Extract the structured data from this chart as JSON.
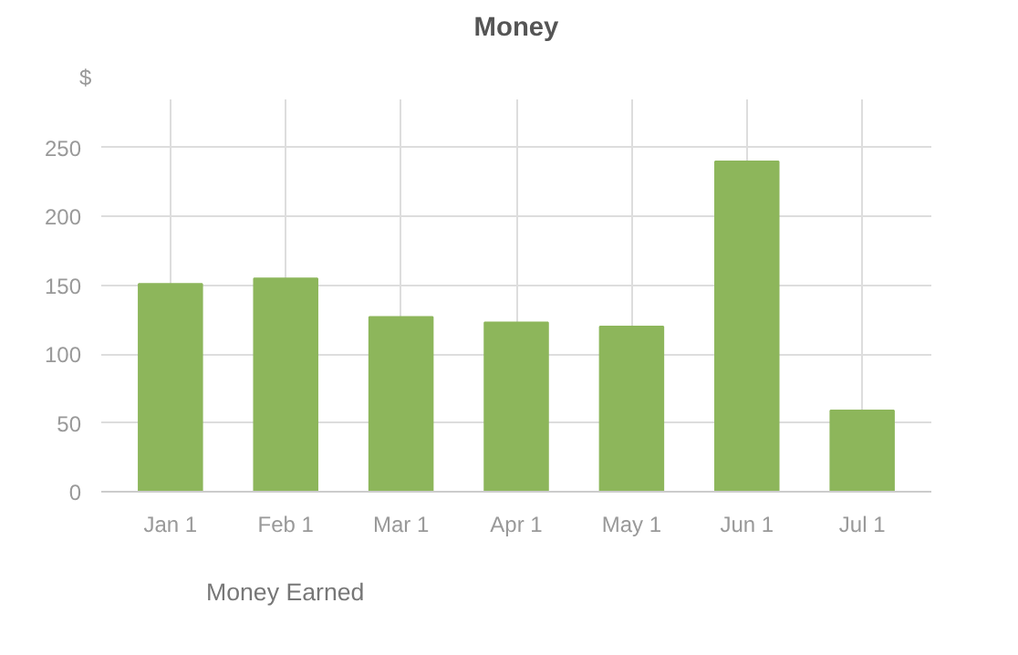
{
  "chart_data": {
    "type": "bar",
    "title": "Money",
    "ylabel": "$",
    "categories": [
      "Jan 1",
      "Feb 1",
      "Mar 1",
      "Apr 1",
      "May 1",
      "Jun 1",
      "Jul 1"
    ],
    "series": [
      {
        "name": "Money Earned",
        "color": "#8db65b",
        "values": [
          151,
          155,
          127,
          123,
          120,
          240,
          59
        ]
      }
    ],
    "ylim": [
      0,
      285
    ],
    "yticks": [
      0,
      50,
      100,
      150,
      200,
      250
    ],
    "grid": true,
    "legend": "bottom left"
  }
}
